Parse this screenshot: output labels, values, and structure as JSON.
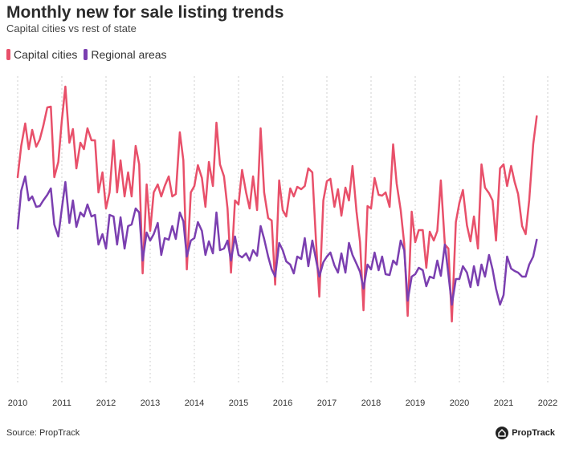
{
  "title": "Monthly new for sale listing trends",
  "subtitle": "Capital cities vs rest of state",
  "source": "Source: PropTrack",
  "brand": "PropTrack",
  "chart_data": {
    "type": "line",
    "title": "Monthly new for sale listing trends",
    "subtitle": "Capital cities vs rest of state",
    "x_ticks": [
      "2010",
      "2011",
      "2012",
      "2013",
      "2014",
      "2015",
      "2016",
      "2017",
      "2018",
      "2019",
      "2020",
      "2021",
      "2022"
    ],
    "x_range": [
      2010,
      2022
    ],
    "grid": "vertical",
    "legend_position": "top-left",
    "series": [
      {
        "name": "Capital cities",
        "color": "#e8506a",
        "points": [
          [
            2010.0,
            221
          ],
          [
            2010.08,
            182
          ],
          [
            2010.17,
            154
          ],
          [
            2010.25,
            186
          ],
          [
            2010.33,
            162
          ],
          [
            2010.42,
            183
          ],
          [
            2010.5,
            174
          ],
          [
            2010.58,
            157
          ],
          [
            2010.67,
            134
          ],
          [
            2010.75,
            133
          ],
          [
            2010.83,
            221
          ],
          [
            2010.92,
            202
          ],
          [
            2011.0,
            150
          ],
          [
            2011.08,
            108
          ],
          [
            2011.17,
            178
          ],
          [
            2011.25,
            161
          ],
          [
            2011.33,
            210
          ],
          [
            2011.42,
            178
          ],
          [
            2011.5,
            186
          ],
          [
            2011.58,
            160
          ],
          [
            2011.67,
            175
          ],
          [
            2011.75,
            175
          ],
          [
            2011.83,
            240
          ],
          [
            2011.92,
            215
          ],
          [
            2012.0,
            260
          ],
          [
            2012.08,
            240
          ],
          [
            2012.17,
            175
          ],
          [
            2012.25,
            240
          ],
          [
            2012.33,
            200
          ],
          [
            2012.42,
            245
          ],
          [
            2012.5,
            215
          ],
          [
            2012.58,
            245
          ],
          [
            2012.67,
            182
          ],
          [
            2012.75,
            205
          ],
          [
            2012.83,
            341
          ],
          [
            2012.92,
            230
          ],
          [
            2013.0,
            288
          ],
          [
            2013.08,
            240
          ],
          [
            2013.17,
            230
          ],
          [
            2013.25,
            245
          ],
          [
            2013.33,
            232
          ],
          [
            2013.42,
            220
          ],
          [
            2013.5,
            245
          ],
          [
            2013.58,
            242
          ],
          [
            2013.67,
            165
          ],
          [
            2013.75,
            200
          ],
          [
            2013.83,
            336
          ],
          [
            2013.92,
            240
          ],
          [
            2014.0,
            232
          ],
          [
            2014.08,
            206
          ],
          [
            2014.17,
            222
          ],
          [
            2014.25,
            258
          ],
          [
            2014.33,
            202
          ],
          [
            2014.42,
            232
          ],
          [
            2014.5,
            153
          ],
          [
            2014.58,
            205
          ],
          [
            2014.67,
            220
          ],
          [
            2014.75,
            260
          ],
          [
            2014.83,
            340
          ],
          [
            2014.92,
            250
          ],
          [
            2015.0,
            255
          ],
          [
            2015.08,
            212
          ],
          [
            2015.17,
            240
          ],
          [
            2015.25,
            260
          ],
          [
            2015.33,
            220
          ],
          [
            2015.42,
            262
          ],
          [
            2015.5,
            160
          ],
          [
            2015.58,
            240
          ],
          [
            2015.67,
            272
          ],
          [
            2015.75,
            275
          ],
          [
            2015.83,
            355
          ],
          [
            2015.92,
            225
          ],
          [
            2016.0,
            262
          ],
          [
            2016.08,
            270
          ],
          [
            2016.17,
            235
          ],
          [
            2016.25,
            245
          ],
          [
            2016.33,
            233
          ],
          [
            2016.42,
            236
          ],
          [
            2016.5,
            232
          ],
          [
            2016.58,
            210
          ],
          [
            2016.67,
            215
          ],
          [
            2016.75,
            298
          ],
          [
            2016.83,
            370
          ],
          [
            2016.92,
            250
          ],
          [
            2017.0,
            226
          ],
          [
            2017.08,
            223
          ],
          [
            2017.17,
            258
          ],
          [
            2017.25,
            236
          ],
          [
            2017.33,
            269
          ],
          [
            2017.42,
            234
          ],
          [
            2017.5,
            250
          ],
          [
            2017.58,
            207
          ],
          [
            2017.67,
            264
          ],
          [
            2017.75,
            302
          ],
          [
            2017.83,
            387
          ],
          [
            2017.92,
            257
          ],
          [
            2018.0,
            260
          ],
          [
            2018.08,
            222
          ],
          [
            2018.17,
            243
          ],
          [
            2018.25,
            244
          ],
          [
            2018.33,
            240
          ],
          [
            2018.42,
            258
          ],
          [
            2018.5,
            180
          ],
          [
            2018.58,
            229
          ],
          [
            2018.67,
            262
          ],
          [
            2018.75,
            304
          ],
          [
            2018.83,
            394
          ],
          [
            2018.92,
            264
          ],
          [
            2019.0,
            302
          ],
          [
            2019.08,
            287
          ],
          [
            2019.17,
            287
          ],
          [
            2019.25,
            334
          ],
          [
            2019.33,
            289
          ],
          [
            2019.42,
            300
          ],
          [
            2019.5,
            288
          ],
          [
            2019.58,
            225
          ],
          [
            2019.67,
            305
          ],
          [
            2019.75,
            310
          ],
          [
            2019.83,
            401
          ],
          [
            2019.92,
            277
          ],
          [
            2020.0,
            253
          ],
          [
            2020.08,
            237
          ],
          [
            2020.17,
            281
          ],
          [
            2020.25,
            301
          ],
          [
            2020.33,
            270
          ],
          [
            2020.42,
            310
          ],
          [
            2020.5,
            205
          ],
          [
            2020.58,
            234
          ],
          [
            2020.67,
            241
          ],
          [
            2020.75,
            250
          ],
          [
            2020.83,
            300
          ],
          [
            2020.92,
            210
          ],
          [
            2021.0,
            205
          ],
          [
            2021.08,
            232
          ],
          [
            2021.17,
            207
          ],
          [
            2021.25,
            227
          ],
          [
            2021.33,
            242
          ],
          [
            2021.42,
            282
          ],
          [
            2021.5,
            292
          ],
          [
            2021.58,
            250
          ],
          [
            2021.67,
            180
          ],
          [
            2021.75,
            145
          ]
        ]
      },
      {
        "name": "Regional areas",
        "color": "#7b3fb0",
        "points": [
          [
            2010.0,
            285
          ],
          [
            2010.08,
            238
          ],
          [
            2010.17,
            220
          ],
          [
            2010.25,
            250
          ],
          [
            2010.33,
            245
          ],
          [
            2010.42,
            258
          ],
          [
            2010.5,
            257
          ],
          [
            2010.58,
            250
          ],
          [
            2010.67,
            243
          ],
          [
            2010.75,
            235
          ],
          [
            2010.83,
            280
          ],
          [
            2010.92,
            295
          ],
          [
            2011.0,
            260
          ],
          [
            2011.08,
            227
          ],
          [
            2011.17,
            278
          ],
          [
            2011.25,
            250
          ],
          [
            2011.33,
            283
          ],
          [
            2011.42,
            265
          ],
          [
            2011.5,
            270
          ],
          [
            2011.58,
            255
          ],
          [
            2011.67,
            270
          ],
          [
            2011.75,
            268
          ],
          [
            2011.83,
            305
          ],
          [
            2011.92,
            292
          ],
          [
            2012.0,
            310
          ],
          [
            2012.08,
            268
          ],
          [
            2012.17,
            270
          ],
          [
            2012.25,
            305
          ],
          [
            2012.33,
            271
          ],
          [
            2012.42,
            310
          ],
          [
            2012.5,
            282
          ],
          [
            2012.58,
            280
          ],
          [
            2012.67,
            260
          ],
          [
            2012.75,
            265
          ],
          [
            2012.83,
            325
          ],
          [
            2012.92,
            290
          ],
          [
            2013.0,
            300
          ],
          [
            2013.08,
            292
          ],
          [
            2013.17,
            278
          ],
          [
            2013.25,
            318
          ],
          [
            2013.33,
            297
          ],
          [
            2013.42,
            299
          ],
          [
            2013.5,
            282
          ],
          [
            2013.58,
            298
          ],
          [
            2013.67,
            265
          ],
          [
            2013.75,
            276
          ],
          [
            2013.83,
            320
          ],
          [
            2013.92,
            300
          ],
          [
            2014.0,
            297
          ],
          [
            2014.08,
            277
          ],
          [
            2014.17,
            288
          ],
          [
            2014.25,
            318
          ],
          [
            2014.33,
            301
          ],
          [
            2014.42,
            316
          ],
          [
            2014.5,
            265
          ],
          [
            2014.58,
            312
          ],
          [
            2014.67,
            310
          ],
          [
            2014.75,
            300
          ],
          [
            2014.83,
            325
          ],
          [
            2014.92,
            295
          ],
          [
            2015.0,
            318
          ],
          [
            2015.08,
            321
          ],
          [
            2015.17,
            316
          ],
          [
            2015.25,
            325
          ],
          [
            2015.33,
            312
          ],
          [
            2015.42,
            319
          ],
          [
            2015.5,
            282
          ],
          [
            2015.58,
            298
          ],
          [
            2015.67,
            320
          ],
          [
            2015.75,
            336
          ],
          [
            2015.83,
            345
          ],
          [
            2015.92,
            303
          ],
          [
            2016.0,
            312
          ],
          [
            2016.08,
            326
          ],
          [
            2016.17,
            330
          ],
          [
            2016.25,
            341
          ],
          [
            2016.33,
            320
          ],
          [
            2016.42,
            323
          ],
          [
            2016.5,
            297
          ],
          [
            2016.58,
            332
          ],
          [
            2016.67,
            300
          ],
          [
            2016.75,
            323
          ],
          [
            2016.83,
            345
          ],
          [
            2016.92,
            327
          ],
          [
            2017.0,
            320
          ],
          [
            2017.08,
            315
          ],
          [
            2017.17,
            331
          ],
          [
            2017.25,
            340
          ],
          [
            2017.33,
            316
          ],
          [
            2017.42,
            340
          ],
          [
            2017.5,
            303
          ],
          [
            2017.58,
            318
          ],
          [
            2017.67,
            329
          ],
          [
            2017.75,
            339
          ],
          [
            2017.83,
            360
          ],
          [
            2017.92,
            330
          ],
          [
            2018.0,
            336
          ],
          [
            2018.08,
            315
          ],
          [
            2018.17,
            337
          ],
          [
            2018.25,
            320
          ],
          [
            2018.33,
            342
          ],
          [
            2018.42,
            343
          ],
          [
            2018.5,
            325
          ],
          [
            2018.58,
            330
          ],
          [
            2018.67,
            300
          ],
          [
            2018.75,
            312
          ],
          [
            2018.83,
            375
          ],
          [
            2018.92,
            345
          ],
          [
            2019.0,
            342
          ],
          [
            2019.08,
            334
          ],
          [
            2019.17,
            337
          ],
          [
            2019.25,
            357
          ],
          [
            2019.33,
            345
          ],
          [
            2019.42,
            347
          ],
          [
            2019.5,
            325
          ],
          [
            2019.58,
            344
          ],
          [
            2019.67,
            305
          ],
          [
            2019.75,
            342
          ],
          [
            2019.83,
            380
          ],
          [
            2019.92,
            348
          ],
          [
            2020.0,
            348
          ],
          [
            2020.08,
            332
          ],
          [
            2020.17,
            340
          ],
          [
            2020.25,
            358
          ],
          [
            2020.33,
            332
          ],
          [
            2020.42,
            356
          ],
          [
            2020.5,
            330
          ],
          [
            2020.58,
            345
          ],
          [
            2020.67,
            318
          ],
          [
            2020.75,
            336
          ],
          [
            2020.83,
            360
          ],
          [
            2020.92,
            380
          ],
          [
            2021.0,
            368
          ],
          [
            2021.08,
            320
          ],
          [
            2021.17,
            335
          ],
          [
            2021.25,
            338
          ],
          [
            2021.33,
            340
          ],
          [
            2021.42,
            345
          ],
          [
            2021.5,
            345
          ],
          [
            2021.58,
            330
          ],
          [
            2021.67,
            320
          ],
          [
            2021.75,
            299
          ]
        ]
      }
    ]
  }
}
